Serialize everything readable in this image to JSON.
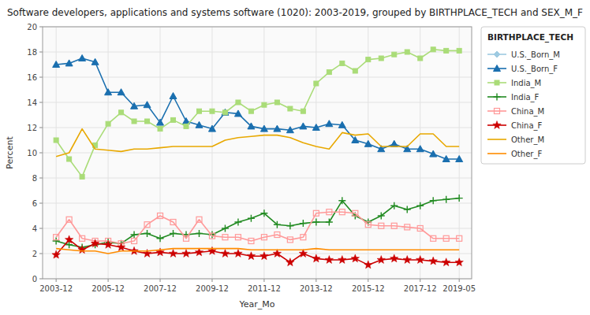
{
  "chart_data": {
    "type": "line",
    "title": "Software developers, applications and systems software (1020): 2003-2019, grouped by BIRTHPLACE_TECH and SEX_M_F",
    "x_label": "Year_Mo",
    "y_label": "Percent",
    "legend_title": "BIRTHPLACE_TECH",
    "legend": "right",
    "grid": true,
    "xlim": [
      2003.4,
      2019.9
    ],
    "ylim": [
      0,
      20
    ],
    "xticks": [
      {
        "value": 2003.92,
        "label": "2003-12"
      },
      {
        "value": 2005.92,
        "label": "2005-12"
      },
      {
        "value": 2007.92,
        "label": "2007-12"
      },
      {
        "value": 2009.92,
        "label": "2009-12"
      },
      {
        "value": 2011.92,
        "label": "2011-12"
      },
      {
        "value": 2013.92,
        "label": "2013-12"
      },
      {
        "value": 2015.92,
        "label": "2015-12"
      },
      {
        "value": 2017.92,
        "label": "2017-12"
      },
      {
        "value": 2019.42,
        "label": "2019-05"
      }
    ],
    "yticks": [
      0,
      2,
      4,
      6,
      8,
      10,
      12,
      14,
      16,
      18,
      20
    ],
    "series": [
      {
        "name": "U.S._Born_M",
        "color": "#9ECAE1",
        "marker": "diamond",
        "x": [],
        "values": []
      },
      {
        "name": "U.S._Born_F",
        "color": "#1A6FAF",
        "marker": "triangle",
        "x": [
          2003.92,
          2004.42,
          2004.92,
          2005.42,
          2005.92,
          2006.42,
          2006.92,
          2007.42,
          2007.92,
          2008.42,
          2008.92,
          2009.42,
          2009.92,
          2010.42,
          2010.92,
          2011.42,
          2011.92,
          2012.42,
          2012.92,
          2013.42,
          2013.92,
          2014.42,
          2014.92,
          2015.42,
          2015.92,
          2016.42,
          2016.92,
          2017.42,
          2017.92,
          2018.42,
          2018.92,
          2019.42
        ],
        "values": [
          17.0,
          17.1,
          17.5,
          17.2,
          14.8,
          14.8,
          13.7,
          13.8,
          12.4,
          14.5,
          12.5,
          12.2,
          11.9,
          13.2,
          13.1,
          12.1,
          11.9,
          11.9,
          11.8,
          12.1,
          12.0,
          12.3,
          12.2,
          11.0,
          10.7,
          10.3,
          10.7,
          10.3,
          10.3,
          9.9,
          9.5,
          9.5
        ]
      },
      {
        "name": "India_M",
        "color": "#AADC78",
        "marker": "square",
        "x": [
          2003.92,
          2004.42,
          2004.92,
          2005.42,
          2005.92,
          2006.42,
          2006.92,
          2007.42,
          2007.92,
          2008.42,
          2008.92,
          2009.42,
          2009.92,
          2010.42,
          2010.92,
          2011.42,
          2011.92,
          2012.42,
          2012.92,
          2013.42,
          2013.92,
          2014.42,
          2014.92,
          2015.42,
          2015.92,
          2016.42,
          2016.92,
          2017.42,
          2017.92,
          2018.42,
          2018.92,
          2019.42
        ],
        "values": [
          11.0,
          9.5,
          8.1,
          10.6,
          12.3,
          13.2,
          12.5,
          12.5,
          11.9,
          12.6,
          12.1,
          13.3,
          13.3,
          13.2,
          14.0,
          13.3,
          13.8,
          14.0,
          13.5,
          13.3,
          15.5,
          16.4,
          17.1,
          16.5,
          17.4,
          17.5,
          17.8,
          18.0,
          17.5,
          18.2,
          18.1,
          18.1
        ]
      },
      {
        "name": "India_F",
        "color": "#228B22",
        "marker": "plus",
        "x": [
          2003.92,
          2004.42,
          2004.92,
          2005.42,
          2005.92,
          2006.42,
          2006.92,
          2007.42,
          2007.92,
          2008.42,
          2008.92,
          2009.42,
          2009.92,
          2010.42,
          2010.92,
          2011.42,
          2011.92,
          2012.42,
          2012.92,
          2013.42,
          2013.92,
          2014.42,
          2014.92,
          2015.42,
          2015.92,
          2016.42,
          2016.92,
          2017.42,
          2017.92,
          2018.42,
          2018.92,
          2019.42
        ],
        "values": [
          3.0,
          2.7,
          2.5,
          2.7,
          2.9,
          2.8,
          3.5,
          3.6,
          3.2,
          3.6,
          3.5,
          3.6,
          3.5,
          4.0,
          4.5,
          4.8,
          5.2,
          4.3,
          4.2,
          4.4,
          4.5,
          4.5,
          6.2,
          5.0,
          4.5,
          5.0,
          5.8,
          5.5,
          5.8,
          6.2,
          6.3,
          6.4
        ]
      },
      {
        "name": "China_M",
        "color": "#FF9999",
        "marker": "square-open",
        "x": [
          2003.92,
          2004.42,
          2004.92,
          2005.42,
          2005.92,
          2006.42,
          2006.92,
          2007.42,
          2007.92,
          2008.42,
          2008.92,
          2009.42,
          2009.92,
          2010.42,
          2010.92,
          2011.42,
          2011.92,
          2012.42,
          2012.92,
          2013.42,
          2013.92,
          2014.42,
          2014.92,
          2015.42,
          2015.92,
          2016.42,
          2016.92,
          2017.42,
          2017.92,
          2018.42,
          2018.92,
          2019.42
        ],
        "values": [
          3.3,
          4.7,
          3.2,
          3.0,
          3.0,
          2.8,
          3.0,
          4.3,
          5.0,
          4.5,
          3.2,
          4.7,
          3.4,
          3.3,
          3.3,
          3.0,
          3.3,
          3.5,
          3.1,
          3.3,
          5.2,
          5.3,
          5.3,
          5.2,
          4.3,
          4.2,
          4.2,
          4.1,
          4.0,
          3.2,
          3.2,
          3.2
        ]
      },
      {
        "name": "China_F",
        "color": "#CC0000",
        "marker": "star",
        "x": [
          2003.92,
          2004.42,
          2004.92,
          2005.42,
          2005.92,
          2006.42,
          2006.92,
          2007.42,
          2007.92,
          2008.42,
          2008.92,
          2009.42,
          2009.92,
          2010.42,
          2010.92,
          2011.42,
          2011.92,
          2012.42,
          2012.92,
          2013.42,
          2013.92,
          2014.42,
          2014.92,
          2015.42,
          2015.92,
          2016.42,
          2016.92,
          2017.42,
          2017.92,
          2018.42,
          2018.92,
          2019.42
        ],
        "values": [
          1.9,
          3.1,
          2.3,
          2.8,
          2.7,
          2.5,
          2.2,
          2.0,
          2.1,
          2.0,
          2.0,
          2.1,
          2.2,
          2.0,
          2.0,
          1.8,
          1.8,
          2.0,
          1.3,
          2.0,
          1.6,
          1.5,
          1.5,
          1.6,
          1.1,
          1.5,
          1.6,
          1.5,
          1.5,
          1.4,
          1.3,
          1.3
        ]
      },
      {
        "name": "Other_M",
        "color": "#E8A800",
        "x": [
          2003.92,
          2004.42,
          2004.92,
          2005.42,
          2005.92,
          2006.42,
          2006.92,
          2007.42,
          2007.92,
          2008.42,
          2008.92,
          2009.42,
          2009.92,
          2010.42,
          2010.92,
          2011.42,
          2011.92,
          2012.42,
          2012.92,
          2013.42,
          2013.92,
          2014.42,
          2014.92,
          2015.42,
          2015.92,
          2016.42,
          2016.92,
          2017.42,
          2017.92,
          2018.42,
          2018.92,
          2019.42
        ],
        "values": [
          9.7,
          10.0,
          11.9,
          10.3,
          10.2,
          10.1,
          10.3,
          10.3,
          10.4,
          10.5,
          10.5,
          10.5,
          10.5,
          11.0,
          11.2,
          11.3,
          11.4,
          11.4,
          11.2,
          10.8,
          10.5,
          10.3,
          11.6,
          11.4,
          11.5,
          10.5,
          10.5,
          10.5,
          11.5,
          11.5,
          10.5,
          10.5
        ]
      },
      {
        "name": "Other_F",
        "color": "#FF8C00",
        "x": [
          2003.92,
          2004.42,
          2004.92,
          2005.42,
          2005.92,
          2006.42,
          2006.92,
          2007.42,
          2007.92,
          2008.42,
          2008.92,
          2009.42,
          2009.92,
          2010.42,
          2010.92,
          2011.42,
          2011.92,
          2012.42,
          2012.92,
          2013.42,
          2013.92,
          2014.42,
          2014.92,
          2015.42,
          2015.92,
          2016.42,
          2016.92,
          2017.42,
          2017.92,
          2018.42,
          2018.92,
          2019.42
        ],
        "values": [
          2.4,
          2.3,
          2.2,
          2.2,
          2.0,
          2.2,
          2.2,
          2.2,
          2.3,
          2.4,
          2.4,
          2.4,
          2.4,
          2.4,
          2.4,
          2.3,
          2.3,
          2.3,
          2.3,
          2.3,
          2.4,
          2.3,
          2.3,
          2.3,
          2.3,
          2.3,
          2.3,
          2.3,
          2.3,
          2.3,
          2.3,
          2.3
        ]
      }
    ]
  }
}
